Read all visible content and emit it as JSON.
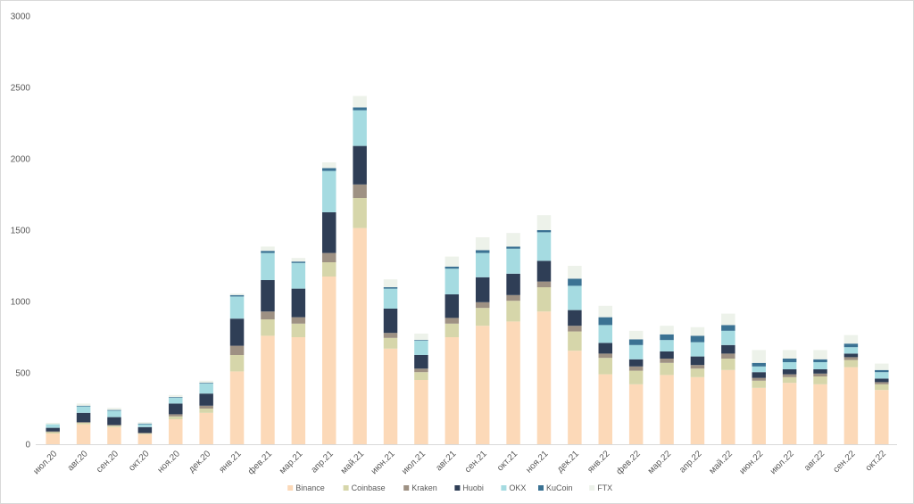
{
  "chart_data": {
    "type": "bar",
    "stacked": true,
    "title": "",
    "xlabel": "",
    "ylabel": "",
    "ylim": [
      0,
      3000
    ],
    "yticks": [
      0,
      500,
      1000,
      1500,
      2000,
      2500,
      3000
    ],
    "grid": false,
    "legend_position": "bottom-center",
    "categories": [
      "июл.20",
      "авг.20",
      "сен.20",
      "окт.20",
      "ноя.20",
      "дек.20",
      "янв.21",
      "фев.21",
      "мар.21",
      "апр.21",
      "май.21",
      "июн.21",
      "июл.21",
      "авг.21",
      "сен.21",
      "окт.21",
      "ноя.21",
      "дек.21",
      "янв.22",
      "фев.22",
      "мар.22",
      "апр.22",
      "май.22",
      "июн.22",
      "июл.22",
      "авг.22",
      "сен.22",
      "окт.22"
    ],
    "series": [
      {
        "name": "Binance",
        "color": "#fcd9b8",
        "values": [
          75,
          140,
          120,
          70,
          175,
          220,
          510,
          760,
          750,
          1175,
          1515,
          670,
          450,
          750,
          830,
          860,
          930,
          655,
          490,
          420,
          485,
          470,
          520,
          395,
          430,
          420,
          540,
          380
        ]
      },
      {
        "name": "Coinbase",
        "color": "#d6d6aa",
        "values": [
          10,
          10,
          10,
          5,
          20,
          30,
          115,
          115,
          95,
          100,
          210,
          75,
          55,
          95,
          125,
          145,
          170,
          135,
          115,
          95,
          85,
          60,
          80,
          50,
          40,
          55,
          50,
          40
        ]
      },
      {
        "name": "Kraken",
        "color": "#9e9183",
        "values": [
          5,
          5,
          5,
          5,
          15,
          20,
          65,
          55,
          45,
          65,
          95,
          35,
          25,
          40,
          40,
          40,
          40,
          40,
          30,
          30,
          30,
          25,
          35,
          20,
          20,
          20,
          20,
          15
        ]
      },
      {
        "name": "Huobi",
        "color": "#2f3e56",
        "values": [
          25,
          65,
          55,
          40,
          75,
          85,
          190,
          220,
          200,
          285,
          270,
          170,
          95,
          165,
          175,
          150,
          145,
          110,
          75,
          50,
          50,
          60,
          60,
          40,
          35,
          30,
          25,
          25
        ]
      },
      {
        "name": "OKX",
        "color": "#a5dbe1",
        "values": [
          25,
          45,
          45,
          20,
          40,
          70,
          155,
          190,
          180,
          290,
          250,
          140,
          100,
          180,
          170,
          175,
          200,
          170,
          125,
          100,
          80,
          100,
          100,
          40,
          50,
          50,
          45,
          45
        ]
      },
      {
        "name": "KuCoin",
        "color": "#3b7293",
        "values": [
          0,
          5,
          5,
          5,
          5,
          5,
          10,
          15,
          10,
          20,
          20,
          10,
          5,
          15,
          20,
          15,
          15,
          50,
          55,
          40,
          40,
          45,
          40,
          25,
          25,
          20,
          25,
          15
        ]
      },
      {
        "name": "FTX",
        "color": "#edf2ea",
        "values": [
          10,
          15,
          15,
          10,
          15,
          15,
          10,
          30,
          25,
          40,
          80,
          55,
          45,
          70,
          90,
          95,
          105,
          90,
          80,
          60,
          60,
          60,
          80,
          90,
          60,
          65,
          60,
          45
        ]
      }
    ]
  }
}
